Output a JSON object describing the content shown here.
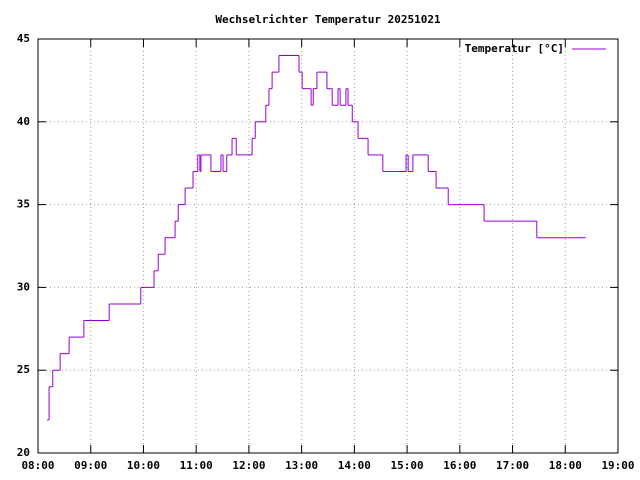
{
  "chart_data": {
    "type": "step",
    "title": "Wechselrichter Temperatur 20251021",
    "x": [
      8.17,
      8.21,
      8.28,
      8.42,
      8.59,
      8.87,
      9.35,
      9.95,
      10.2,
      10.28,
      10.41,
      10.6,
      10.66,
      10.79,
      10.94,
      11.03,
      11.07,
      11.09,
      11.28,
      11.47,
      11.51,
      11.58,
      11.68,
      11.76,
      12.06,
      12.12,
      12.32,
      12.38,
      12.44,
      12.57,
      12.95,
      13.01,
      13.18,
      13.22,
      13.29,
      13.48,
      13.58,
      13.69,
      13.73,
      13.84,
      13.88,
      13.96,
      14.07,
      14.26,
      14.54,
      14.98,
      15.02,
      15.11,
      15.4,
      15.55,
      15.78,
      16.46,
      17.46,
      18.39
    ],
    "series": [
      {
        "name": "Temperatur [°C]",
        "color": "#9400d3",
        "values": [
          22,
          24,
          25,
          26,
          27,
          28,
          29,
          30,
          31,
          32,
          33,
          34,
          35,
          36,
          37,
          38,
          37,
          38,
          37,
          38,
          37,
          38,
          39,
          38,
          39,
          40,
          41,
          42,
          43,
          44,
          43,
          42,
          41,
          42,
          43,
          42,
          41,
          42,
          41,
          42,
          41,
          40,
          39,
          38,
          37,
          38,
          37,
          38,
          37,
          36,
          35,
          34,
          33,
          33
        ]
      }
    ],
    "xlim": [
      8,
      19
    ],
    "xticks": [
      {
        "value": 8,
        "label": "08:00"
      },
      {
        "value": 9,
        "label": "09:00"
      },
      {
        "value": 10,
        "label": "10:00"
      },
      {
        "value": 11,
        "label": "11:00"
      },
      {
        "value": 12,
        "label": "12:00"
      },
      {
        "value": 13,
        "label": "13:00"
      },
      {
        "value": 14,
        "label": "14:00"
      },
      {
        "value": 15,
        "label": "15:00"
      },
      {
        "value": 16,
        "label": "16:00"
      },
      {
        "value": 17,
        "label": "17:00"
      },
      {
        "value": 18,
        "label": "18:00"
      },
      {
        "value": 19,
        "label": "19:00"
      }
    ],
    "ylim": [
      20,
      45
    ],
    "yticks": [
      20,
      25,
      30,
      35,
      40,
      45
    ],
    "grid": true,
    "legend": "top-right"
  }
}
